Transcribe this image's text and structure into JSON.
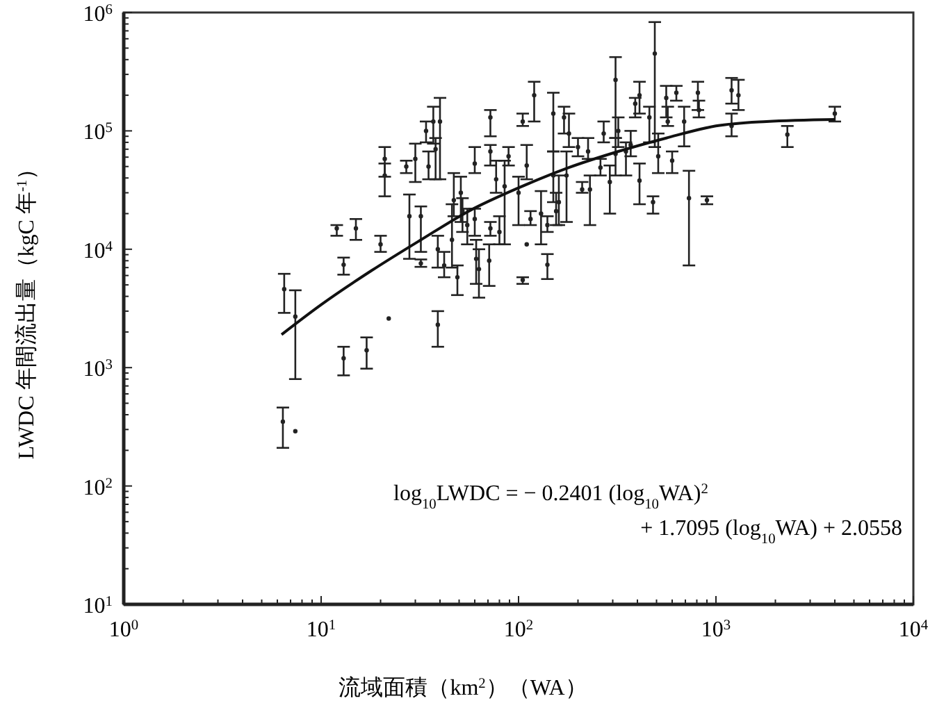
{
  "chart_data": {
    "type": "scatter",
    "xlabel": "流域面積（km$^{2}$）（WA）",
    "ylabel": "LWDC 年間流出量（kgC 年$^{-1}$）",
    "log": "xy",
    "xlim": [
      1,
      10000
    ],
    "ylim": [
      10,
      1000000
    ],
    "xticks": [
      {
        "value": 1,
        "label": "10$^{0}$"
      },
      {
        "value": 2,
        "label": null
      },
      {
        "value": 3,
        "label": null
      },
      {
        "value": 4,
        "label": null
      },
      {
        "value": 5,
        "label": null
      },
      {
        "value": 6,
        "label": null
      },
      {
        "value": 7,
        "label": null
      },
      {
        "value": 8,
        "label": null
      },
      {
        "value": 9,
        "label": null
      },
      {
        "value": 10,
        "label": "10$^{1}$"
      },
      {
        "value": 20,
        "label": null
      },
      {
        "value": 30,
        "label": null
      },
      {
        "value": 40,
        "label": null
      },
      {
        "value": 50,
        "label": null
      },
      {
        "value": 60,
        "label": null
      },
      {
        "value": 70,
        "label": null
      },
      {
        "value": 80,
        "label": null
      },
      {
        "value": 90,
        "label": null
      },
      {
        "value": 100,
        "label": "10$^{2}$"
      },
      {
        "value": 200,
        "label": null
      },
      {
        "value": 300,
        "label": null
      },
      {
        "value": 400,
        "label": null
      },
      {
        "value": 500,
        "label": null
      },
      {
        "value": 600,
        "label": null
      },
      {
        "value": 700,
        "label": null
      },
      {
        "value": 800,
        "label": null
      },
      {
        "value": 900,
        "label": null
      },
      {
        "value": 1000,
        "label": "10$^{3}$"
      },
      {
        "value": 2000,
        "label": null
      },
      {
        "value": 3000,
        "label": null
      },
      {
        "value": 4000,
        "label": null
      },
      {
        "value": 5000,
        "label": null
      },
      {
        "value": 6000,
        "label": null
      },
      {
        "value": 7000,
        "label": null
      },
      {
        "value": 8000,
        "label": null
      },
      {
        "value": 9000,
        "label": null
      },
      {
        "value": 10000,
        "label": "10$^{4}$"
      }
    ],
    "yticks": [
      {
        "value": 10,
        "label": "10$^{1}$"
      },
      {
        "value": 20,
        "label": null
      },
      {
        "value": 30,
        "label": null
      },
      {
        "value": 40,
        "label": null
      },
      {
        "value": 50,
        "label": null
      },
      {
        "value": 60,
        "label": null
      },
      {
        "value": 70,
        "label": null
      },
      {
        "value": 80,
        "label": null
      },
      {
        "value": 90,
        "label": null
      },
      {
        "value": 100,
        "label": "10$^{2}$"
      },
      {
        "value": 200,
        "label": null
      },
      {
        "value": 300,
        "label": null
      },
      {
        "value": 400,
        "label": null
      },
      {
        "value": 500,
        "label": null
      },
      {
        "value": 600,
        "label": null
      },
      {
        "value": 700,
        "label": null
      },
      {
        "value": 800,
        "label": null
      },
      {
        "value": 900,
        "label": null
      },
      {
        "value": 1000,
        "label": "10$^{3}$"
      },
      {
        "value": 2000,
        "label": null
      },
      {
        "value": 3000,
        "label": null
      },
      {
        "value": 4000,
        "label": null
      },
      {
        "value": 5000,
        "label": null
      },
      {
        "value": 6000,
        "label": null
      },
      {
        "value": 7000,
        "label": null
      },
      {
        "value": 8000,
        "label": null
      },
      {
        "value": 9000,
        "label": null
      },
      {
        "value": 10000,
        "label": "10$^{4}$"
      },
      {
        "value": 20000,
        "label": null
      },
      {
        "value": 30000,
        "label": null
      },
      {
        "value": 40000,
        "label": null
      },
      {
        "value": 50000,
        "label": null
      },
      {
        "value": 60000,
        "label": null
      },
      {
        "value": 70000,
        "label": null
      },
      {
        "value": 80000,
        "label": null
      },
      {
        "value": 90000,
        "label": null
      },
      {
        "value": 100000,
        "label": "10$^{5}$"
      },
      {
        "value": 200000,
        "label": null
      },
      {
        "value": 300000,
        "label": null
      },
      {
        "value": 400000,
        "label": null
      },
      {
        "value": 500000,
        "label": null
      },
      {
        "value": 600000,
        "label": null
      },
      {
        "value": 700000,
        "label": null
      },
      {
        "value": 800000,
        "label": null
      },
      {
        "value": 900000,
        "label": null
      },
      {
        "value": 1000000,
        "label": "10$^{6}$"
      }
    ],
    "annotations": [
      "log$_{10}$LWDC = − 0.2401 (log$_{10}$WA)$^{2}$",
      "+ 1.7095 (log$_{10}$WA) + 2.0558"
    ],
    "series": [
      {
        "type": "scatter",
        "marker": "circle",
        "color": "#222222",
        "x": [
          6.5,
          7.4,
          6.4,
          7.4,
          12,
          15,
          13,
          13,
          17,
          22,
          21,
          21,
          20,
          27,
          28,
          32,
          32,
          30,
          34,
          35,
          37,
          40,
          38,
          39,
          39,
          42,
          46,
          47,
          49,
          51,
          52,
          55,
          60,
          60,
          61,
          63,
          71,
          72,
          72,
          72,
          77,
          80,
          85,
          89,
          105,
          105,
          110,
          100,
          110,
          120,
          115,
          130,
          140,
          150,
          150,
          155,
          160,
          170,
          180,
          175,
          140,
          200,
          230,
          210,
          225,
          260,
          270,
          290,
          310,
          310,
          320,
          350,
          370,
          390,
          410,
          410,
          460,
          490,
          510,
          480,
          560,
          570,
          600,
          630,
          690,
          730,
          810,
          820,
          900,
          1200,
          1300,
          1200,
          2300,
          4000
        ],
        "values": [
          4600,
          2700,
          350,
          290,
          15000,
          15000,
          7400,
          1200,
          1400,
          2600,
          58000,
          42000,
          11000,
          50000,
          19000,
          19000,
          7600,
          58000,
          100000,
          50000,
          120000,
          120000,
          70000,
          2300,
          10000,
          7300,
          12000,
          26000,
          5800,
          30000,
          21000,
          16000,
          53000,
          18000,
          8300,
          6800,
          8000,
          130000,
          67000,
          15000,
          39000,
          14000,
          34000,
          61000,
          120000,
          5500,
          11000,
          30000,
          51000,
          200000,
          18000,
          20000,
          7400,
          140000,
          42000,
          21000,
          25000,
          130000,
          95000,
          42000,
          16000,
          73000,
          32000,
          32000,
          67000,
          49000,
          95000,
          37000,
          270000,
          64000,
          100000,
          67000,
          76000,
          170000,
          200000,
          38000,
          130000,
          450000,
          61000,
          25000,
          190000,
          120000,
          56000,
          210000,
          120000,
          27000,
          210000,
          150000,
          26000,
          220000,
          200000,
          110000,
          93000,
          140000
        ],
        "errors": [
          [
            2900,
            6200
          ],
          [
            800,
            4500
          ],
          [
            210,
            460
          ],
          null,
          [
            13000,
            16000
          ],
          [
            12000,
            18000
          ],
          [
            6100,
            8500
          ],
          [
            860,
            1500
          ],
          [
            980,
            1800
          ],
          null,
          [
            41000,
            73000
          ],
          [
            28000,
            53000
          ],
          [
            9500,
            13000
          ],
          [
            44000,
            56000
          ],
          [
            8300,
            29000
          ],
          [
            9500,
            23000
          ],
          [
            7100,
            8200
          ],
          [
            37000,
            78000
          ],
          [
            80000,
            120000
          ],
          [
            39000,
            67000
          ],
          [
            78000,
            160000
          ],
          [
            39000,
            190000
          ],
          [
            39000,
            87000
          ],
          [
            1500,
            3000
          ],
          [
            7000,
            13000
          ],
          [
            5800,
            9500
          ],
          [
            7000,
            24000
          ],
          [
            19000,
            44000
          ],
          [
            4100,
            7300
          ],
          [
            17000,
            41000
          ],
          [
            14000,
            27000
          ],
          [
            11000,
            22000
          ],
          [
            44000,
            73000
          ],
          [
            13000,
            22000
          ],
          [
            5100,
            12000
          ],
          [
            3900,
            10000
          ],
          [
            4900,
            11000
          ],
          [
            90000,
            150000
          ],
          [
            51000,
            76000
          ],
          [
            13000,
            17000
          ],
          [
            30000,
            56000
          ],
          [
            11000,
            19000
          ],
          [
            11000,
            56000
          ],
          [
            51000,
            73000
          ],
          [
            110000,
            140000
          ],
          [
            5100,
            5800
          ],
          null,
          [
            16000,
            41000
          ],
          [
            39000,
            76000
          ],
          [
            120000,
            260000
          ],
          [
            16000,
            21000
          ],
          [
            11000,
            31000
          ],
          [
            5600,
            9100
          ],
          [
            67000,
            210000
          ],
          [
            25000,
            67000
          ],
          [
            16000,
            30000
          ],
          [
            16000,
            42000
          ],
          [
            95000,
            160000
          ],
          [
            73000,
            140000
          ],
          [
            17000,
            67000
          ],
          [
            14000,
            19000
          ],
          [
            61000,
            87000
          ],
          [
            16000,
            42000
          ],
          [
            30000,
            37000
          ],
          [
            58000,
            87000
          ],
          [
            42000,
            58000
          ],
          [
            80000,
            120000
          ],
          [
            20000,
            51000
          ],
          [
            87000,
            420000
          ],
          [
            42000,
            87000
          ],
          [
            73000,
            130000
          ],
          [
            42000,
            80000
          ],
          [
            61000,
            100000
          ],
          [
            130000,
            190000
          ],
          [
            140000,
            260000
          ],
          [
            24000,
            53000
          ],
          [
            80000,
            160000
          ],
          [
            73000,
            830000
          ],
          [
            44000,
            95000
          ],
          [
            20000,
            28000
          ],
          [
            130000,
            240000
          ],
          [
            110000,
            160000
          ],
          [
            44000,
            67000
          ],
          [
            180000,
            240000
          ],
          [
            74000,
            160000
          ],
          [
            7300,
            46000
          ],
          [
            150000,
            260000
          ],
          [
            130000,
            180000
          ],
          [
            24000,
            28000
          ],
          [
            170000,
            280000
          ],
          [
            150000,
            270000
          ],
          [
            90000,
            140000
          ],
          [
            73000,
            110000
          ],
          [
            120000,
            160000
          ]
        ]
      },
      {
        "type": "line",
        "color": "#111111",
        "x": [
          6.3,
          10,
          18,
          32,
          56,
          100,
          180,
          320,
          560,
          1000,
          1800,
          4000
        ],
        "values": [
          1900,
          3400,
          6600,
          12000,
          21000,
          33000,
          49000,
          67000,
          87000,
          110000,
          120000,
          125000
        ]
      }
    ]
  }
}
